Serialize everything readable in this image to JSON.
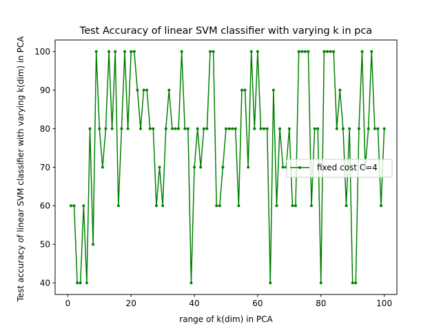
{
  "chart_data": {
    "type": "line",
    "title": "Test Accuracy of linear SVM classifier with varying k in pca",
    "xlabel": "range of k(dim) in PCA",
    "ylabel": "Test accuracy of linear SVM classifier with varying k(dim) in PCA",
    "xlim": [
      -4,
      104
    ],
    "ylim": [
      37,
      103
    ],
    "xticks": [
      0,
      20,
      40,
      60,
      80,
      100
    ],
    "yticks": [
      40,
      50,
      60,
      70,
      80,
      90,
      100
    ],
    "xtick_labels": [
      "0",
      "20",
      "40",
      "60",
      "80",
      "100"
    ],
    "ytick_labels": [
      "40",
      "50",
      "60",
      "70",
      "80",
      "90",
      "100"
    ],
    "grid": false,
    "legend_position": "center-right",
    "series": [
      {
        "name": "fixed cost C=4",
        "color": "#008000",
        "marker": "circle",
        "x": [
          1,
          2,
          3,
          4,
          5,
          6,
          7,
          8,
          9,
          10,
          11,
          12,
          13,
          14,
          15,
          16,
          17,
          18,
          19,
          20,
          21,
          22,
          23,
          24,
          25,
          26,
          27,
          28,
          29,
          30,
          31,
          32,
          33,
          34,
          35,
          36,
          37,
          38,
          39,
          40,
          41,
          42,
          43,
          44,
          45,
          46,
          47,
          48,
          49,
          50,
          51,
          52,
          53,
          54,
          55,
          56,
          57,
          58,
          59,
          60,
          61,
          62,
          63,
          64,
          65,
          66,
          67,
          68,
          69,
          70,
          71,
          72,
          73,
          74,
          75,
          76,
          77,
          78,
          79,
          80,
          81,
          82,
          83,
          84,
          85,
          86,
          87,
          88,
          89,
          90,
          91,
          92,
          93,
          94,
          95,
          96,
          97,
          98,
          99,
          100
        ],
        "y": [
          60,
          60,
          40,
          40,
          60,
          40,
          80,
          50,
          100,
          80,
          70,
          80,
          100,
          80,
          100,
          60,
          80,
          100,
          80,
          100,
          100,
          90,
          80,
          90,
          90,
          80,
          80,
          60,
          70,
          60,
          80,
          90,
          80,
          80,
          80,
          100,
          80,
          80,
          40,
          70,
          80,
          70,
          80,
          80,
          100,
          100,
          60,
          60,
          70,
          80,
          80,
          80,
          80,
          60,
          90,
          90,
          70,
          100,
          80,
          100,
          80,
          80,
          80,
          40,
          90,
          60,
          80,
          70,
          70,
          80,
          60,
          60,
          100,
          100,
          100,
          100,
          60,
          80,
          80,
          40,
          100,
          100,
          100,
          100,
          80,
          90,
          80,
          60,
          80,
          40,
          40,
          80,
          100,
          70,
          80,
          100,
          80,
          80,
          60,
          80
        ]
      }
    ]
  }
}
